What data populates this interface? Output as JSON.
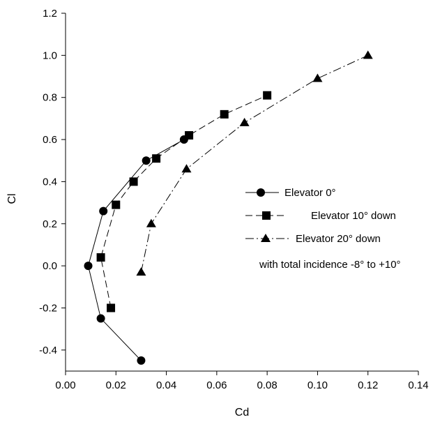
{
  "chart_data": {
    "type": "line",
    "title": "",
    "xlabel": "Cd",
    "ylabel": "Cl",
    "xlim": [
      0.0,
      0.14
    ],
    "ylim": [
      -0.5,
      1.2
    ],
    "xticks": [
      "0.00",
      "0.02",
      "0.04",
      "0.06",
      "0.08",
      "0.10",
      "0.12",
      "0.14"
    ],
    "yticks": [
      "-0.4",
      "-0.2",
      "0.0",
      "0.2",
      "0.4",
      "0.6",
      "0.8",
      "1.0",
      "1.2"
    ],
    "grid": false,
    "legend_position": "center-right",
    "series": [
      {
        "name": "Elevator 0°",
        "marker": "circle",
        "line": "solid",
        "x": [
          0.03,
          0.014,
          0.009,
          0.015,
          0.032,
          0.047
        ],
        "y": [
          -0.45,
          -0.25,
          0.0,
          0.26,
          0.5,
          0.6
        ]
      },
      {
        "name": "Elevator 10° down",
        "marker": "square",
        "line": "long-dash",
        "x": [
          0.018,
          0.014,
          0.02,
          0.027,
          0.036,
          0.049,
          0.063,
          0.08
        ],
        "y": [
          -0.2,
          0.04,
          0.29,
          0.4,
          0.51,
          0.62,
          0.72,
          0.81
        ]
      },
      {
        "name": "Elevator 20° down",
        "marker": "triangle",
        "line": "dash-dot",
        "x": [
          0.03,
          0.034,
          0.048,
          0.071,
          0.1,
          0.12
        ],
        "y": [
          -0.03,
          0.2,
          0.46,
          0.68,
          0.89,
          1.0
        ]
      }
    ],
    "annotation": "with total incidence -8° to +10°"
  }
}
